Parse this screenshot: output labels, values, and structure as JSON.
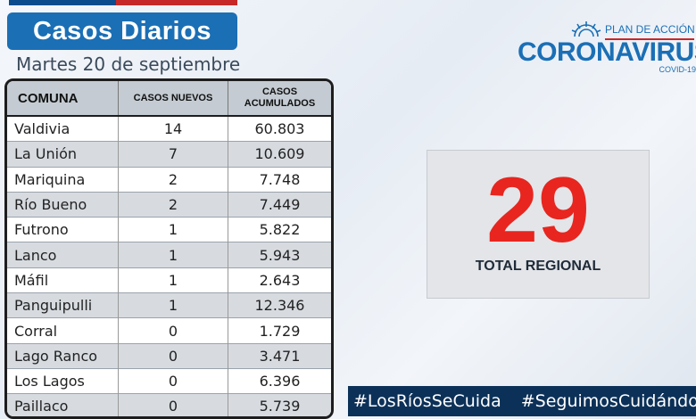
{
  "header": {
    "title": "Casos Diarios",
    "date": "Martes 20 de septiembre"
  },
  "logo": {
    "plan": "PLAN DE ACCIÓN",
    "name": "CORONAVIRUS",
    "sub": "COVID-19"
  },
  "table": {
    "headers": {
      "comuna": "COMUNA",
      "nuevos": "CASOS NUEVOS",
      "acumulados_l1": "CASOS",
      "acumulados_l2": "ACUMULADOS"
    },
    "rows": [
      {
        "comuna": "Valdivia",
        "nuevos": "14",
        "acumulados": "60.803"
      },
      {
        "comuna": "La Unión",
        "nuevos": "7",
        "acumulados": "10.609"
      },
      {
        "comuna": "Mariquina",
        "nuevos": "2",
        "acumulados": "7.748"
      },
      {
        "comuna": "Río Bueno",
        "nuevos": "2",
        "acumulados": "7.449"
      },
      {
        "comuna": "Futrono",
        "nuevos": "1",
        "acumulados": "5.822"
      },
      {
        "comuna": "Lanco",
        "nuevos": "1",
        "acumulados": "5.943"
      },
      {
        "comuna": "Máfil",
        "nuevos": "1",
        "acumulados": "2.643"
      },
      {
        "comuna": "Panguipulli",
        "nuevos": "1",
        "acumulados": "12.346"
      },
      {
        "comuna": "Corral",
        "nuevos": "0",
        "acumulados": "1.729"
      },
      {
        "comuna": "Lago Ranco",
        "nuevos": "0",
        "acumulados": "3.471"
      },
      {
        "comuna": "Los Lagos",
        "nuevos": "0",
        "acumulados": "6.396"
      },
      {
        "comuna": "Paillaco",
        "nuevos": "0",
        "acumulados": "5.739"
      }
    ]
  },
  "total": {
    "value": "29",
    "label": "TOTAL REGIONAL"
  },
  "hashtags": [
    "#LosRíosSeCuida",
    "#SeguimosCuidándonos"
  ],
  "colors": {
    "brand_blue": "#1b6fb5",
    "alert_red": "#e8251f",
    "dark_navy": "#0c3158"
  }
}
